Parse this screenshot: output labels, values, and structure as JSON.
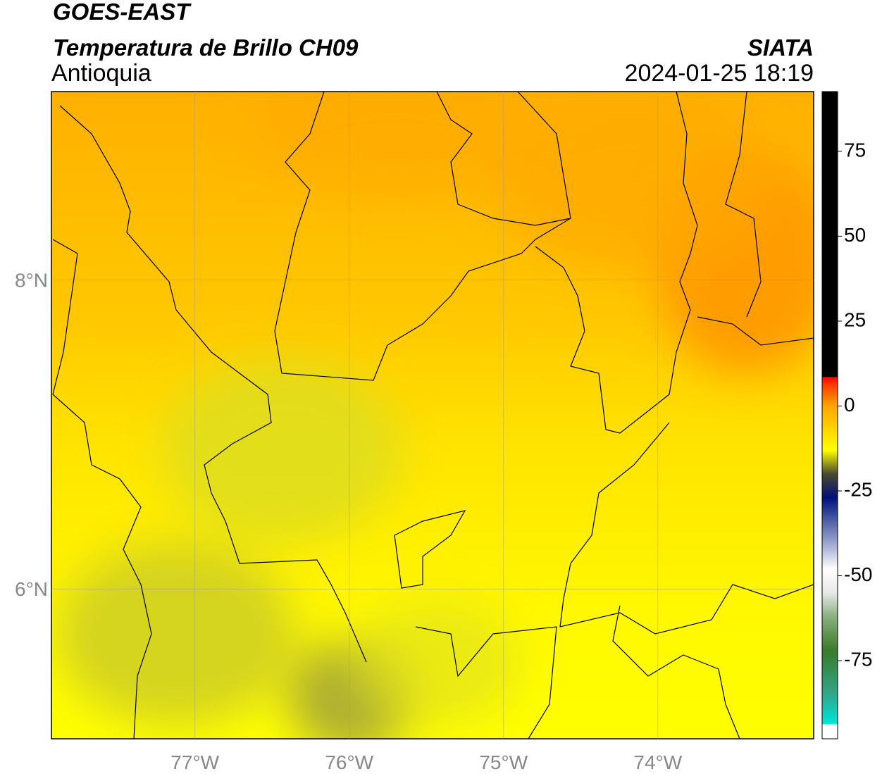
{
  "header": {
    "title": "GOES-EAST",
    "subtitle": "Temperatura de Brillo CH09",
    "region": "Antioquia",
    "source": "SIATA",
    "datetime": "2024-01-25 18:19"
  },
  "map": {
    "lonlim": [
      -77.93,
      -72.99
    ],
    "latlim": [
      5.03,
      9.22
    ],
    "lon_ticks": [
      {
        "value": -77,
        "label": "77°W"
      },
      {
        "value": -76,
        "label": "76°W"
      },
      {
        "value": -75,
        "label": "75°W"
      },
      {
        "value": -74,
        "label": "74°W"
      }
    ],
    "lat_ticks": [
      {
        "value": 8,
        "label": "8°N"
      },
      {
        "value": 6,
        "label": "6°N"
      }
    ],
    "grid": true
  },
  "colorbar": {
    "lim": [
      -98,
      92.6
    ],
    "ticks": [
      75,
      50,
      25,
      0,
      -25,
      -50,
      -75
    ],
    "colormap": [
      {
        "value": -98,
        "color": "#ffffff"
      },
      {
        "value": -94,
        "color": "#ffffff"
      },
      {
        "value": -93.5,
        "color": "#00e5d8"
      },
      {
        "value": -85,
        "color": "#2fa88a"
      },
      {
        "value": -72,
        "color": "#3a7a2a"
      },
      {
        "value": -62,
        "color": "#8ab080"
      },
      {
        "value": -55,
        "color": "#e8e8e8"
      },
      {
        "value": -48,
        "color": "#ffffff"
      },
      {
        "value": -42,
        "color": "#b0b8d8"
      },
      {
        "value": -32,
        "color": "#3a4a9a"
      },
      {
        "value": -27,
        "color": "#00107a"
      },
      {
        "value": -20,
        "color": "#4a4a30"
      },
      {
        "value": -13,
        "color": "#ffff00"
      },
      {
        "value": 0,
        "color": "#ffa500"
      },
      {
        "value": 6,
        "color": "#ff4000"
      },
      {
        "value": 8.5,
        "color": "#ff0000"
      },
      {
        "value": 8.6,
        "color": "#000000"
      },
      {
        "value": 92.6,
        "color": "#000000"
      }
    ]
  }
}
